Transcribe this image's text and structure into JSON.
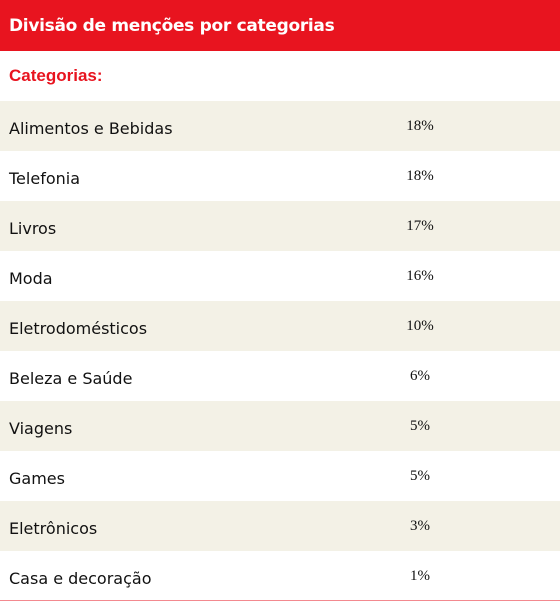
{
  "header": {
    "title": "Divisão de menções por categorias",
    "accent_color": "#e8141f"
  },
  "subheader": {
    "label": "Categorias:"
  },
  "rows": [
    {
      "category": "Alimentos e Bebidas",
      "value": "18%"
    },
    {
      "category": "Telefonia",
      "value": "18%"
    },
    {
      "category": "Livros",
      "value": "17%"
    },
    {
      "category": "Moda",
      "value": "16%"
    },
    {
      "category": "Eletrodomésticos",
      "value": "10%"
    },
    {
      "category": "Beleza e Saúde",
      "value": "6%"
    },
    {
      "category": "Viagens",
      "value": "5%"
    },
    {
      "category": "Games",
      "value": "5%"
    },
    {
      "category": "Eletrônicos",
      "value": "3%"
    },
    {
      "category": "Casa e decoração",
      "value": "1%"
    }
  ]
}
